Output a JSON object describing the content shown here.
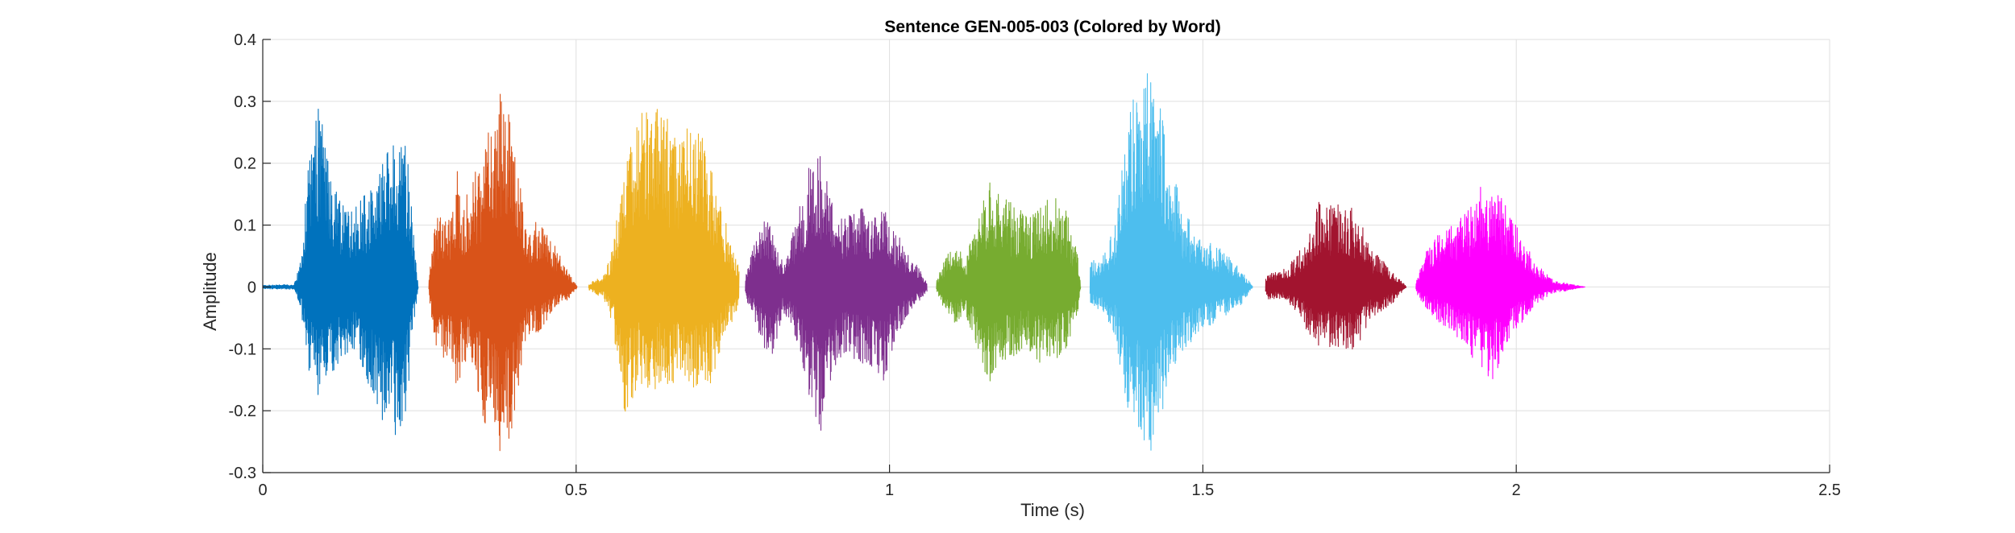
{
  "chart_data": {
    "type": "line",
    "title": "Sentence GEN-005-003 (Colored by Word)",
    "xlabel": "Time (s)",
    "ylabel": "Amplitude",
    "xlim": [
      0,
      2.5
    ],
    "ylim": [
      -0.3,
      0.4
    ],
    "xticks": [
      0,
      0.5,
      1,
      1.5,
      2,
      2.5
    ],
    "xtick_labels": [
      "0",
      "0.5",
      "1",
      "1.5",
      "2",
      "2.5"
    ],
    "yticks": [
      -0.3,
      -0.2,
      -0.1,
      0,
      0.1,
      0.2,
      0.3,
      0.4
    ],
    "ytick_labels": [
      "-0.3",
      "-0.2",
      "-0.1",
      "0",
      "0.1",
      "0.2",
      "0.3",
      "0.4"
    ],
    "grid": true,
    "background": "#ffffff",
    "grid_color": "#dfdfdf",
    "series": [
      {
        "color": "#0072BD",
        "start": 0.0,
        "end": 0.248,
        "envelope": [
          [
            0,
            0.003,
            -0.003
          ],
          [
            0.05,
            0.004,
            -0.004
          ],
          [
            0.06,
            0.04,
            -0.03
          ],
          [
            0.075,
            0.22,
            -0.15
          ],
          [
            0.09,
            0.3,
            -0.18
          ],
          [
            0.11,
            0.17,
            -0.14
          ],
          [
            0.13,
            0.13,
            -0.12
          ],
          [
            0.15,
            0.13,
            -0.1
          ],
          [
            0.17,
            0.16,
            -0.17
          ],
          [
            0.19,
            0.2,
            -0.22
          ],
          [
            0.21,
            0.24,
            -0.24
          ],
          [
            0.225,
            0.28,
            -0.25
          ],
          [
            0.24,
            0.1,
            -0.08
          ],
          [
            0.248,
            0.0,
            0.0
          ]
        ]
      },
      {
        "color": "#D95319",
        "start": 0.265,
        "end": 0.502,
        "envelope": [
          [
            0.265,
            0.01,
            -0.01
          ],
          [
            0.275,
            0.11,
            -0.1
          ],
          [
            0.3,
            0.12,
            -0.13
          ],
          [
            0.31,
            0.19,
            -0.17
          ],
          [
            0.32,
            0.13,
            -0.12
          ],
          [
            0.335,
            0.18,
            -0.14
          ],
          [
            0.35,
            0.2,
            -0.21
          ],
          [
            0.37,
            0.3,
            -0.25
          ],
          [
            0.385,
            0.32,
            -0.28
          ],
          [
            0.4,
            0.25,
            -0.22
          ],
          [
            0.42,
            0.1,
            -0.08
          ],
          [
            0.44,
            0.11,
            -0.08
          ],
          [
            0.47,
            0.06,
            -0.03
          ],
          [
            0.49,
            0.02,
            -0.02
          ],
          [
            0.502,
            0.0,
            0.0
          ]
        ]
      },
      {
        "color": "#EDB120",
        "start": 0.52,
        "end": 0.76,
        "envelope": [
          [
            0.52,
            0.005,
            -0.005
          ],
          [
            0.545,
            0.02,
            -0.02
          ],
          [
            0.56,
            0.07,
            -0.07
          ],
          [
            0.575,
            0.2,
            -0.21
          ],
          [
            0.6,
            0.28,
            -0.16
          ],
          [
            0.62,
            0.3,
            -0.17
          ],
          [
            0.64,
            0.28,
            -0.16
          ],
          [
            0.66,
            0.26,
            -0.16
          ],
          [
            0.68,
            0.27,
            -0.16
          ],
          [
            0.7,
            0.25,
            -0.17
          ],
          [
            0.72,
            0.18,
            -0.15
          ],
          [
            0.74,
            0.1,
            -0.08
          ],
          [
            0.76,
            0.03,
            -0.03
          ]
        ]
      },
      {
        "color": "#7E2F8E",
        "start": 0.77,
        "end": 1.06,
        "envelope": [
          [
            0.77,
            0.02,
            -0.02
          ],
          [
            0.78,
            0.06,
            -0.04
          ],
          [
            0.8,
            0.13,
            -0.1
          ],
          [
            0.815,
            0.08,
            -0.12
          ],
          [
            0.83,
            0.04,
            -0.04
          ],
          [
            0.85,
            0.1,
            -0.08
          ],
          [
            0.87,
            0.19,
            -0.17
          ],
          [
            0.89,
            0.22,
            -0.24
          ],
          [
            0.91,
            0.13,
            -0.13
          ],
          [
            0.93,
            0.11,
            -0.11
          ],
          [
            0.95,
            0.13,
            -0.12
          ],
          [
            0.97,
            0.12,
            -0.13
          ],
          [
            0.99,
            0.14,
            -0.16
          ],
          [
            1.01,
            0.09,
            -0.08
          ],
          [
            1.04,
            0.04,
            -0.03
          ],
          [
            1.06,
            0.01,
            -0.01
          ]
        ]
      },
      {
        "color": "#77AC30",
        "start": 1.075,
        "end": 1.305,
        "envelope": [
          [
            1.075,
            0.01,
            -0.01
          ],
          [
            1.09,
            0.05,
            -0.04
          ],
          [
            1.105,
            0.08,
            -0.06
          ],
          [
            1.12,
            0.04,
            -0.04
          ],
          [
            1.14,
            0.11,
            -0.1
          ],
          [
            1.16,
            0.17,
            -0.16
          ],
          [
            1.18,
            0.15,
            -0.13
          ],
          [
            1.2,
            0.13,
            -0.11
          ],
          [
            1.22,
            0.12,
            -0.1
          ],
          [
            1.24,
            0.14,
            -0.13
          ],
          [
            1.26,
            0.15,
            -0.12
          ],
          [
            1.28,
            0.13,
            -0.11
          ],
          [
            1.3,
            0.06,
            -0.05
          ],
          [
            1.305,
            0.0,
            0.0
          ]
        ]
      },
      {
        "color": "#4DBEEE",
        "start": 1.32,
        "end": 1.58,
        "envelope": [
          [
            1.32,
            0.04,
            -0.03
          ],
          [
            1.34,
            0.05,
            -0.04
          ],
          [
            1.36,
            0.1,
            -0.08
          ],
          [
            1.38,
            0.28,
            -0.2
          ],
          [
            1.4,
            0.35,
            -0.24
          ],
          [
            1.415,
            0.36,
            -0.29
          ],
          [
            1.43,
            0.3,
            -0.22
          ],
          [
            1.45,
            0.2,
            -0.15
          ],
          [
            1.47,
            0.12,
            -0.1
          ],
          [
            1.5,
            0.08,
            -0.07
          ],
          [
            1.53,
            0.06,
            -0.05
          ],
          [
            1.56,
            0.03,
            -0.03
          ],
          [
            1.58,
            0.0,
            0.0
          ]
        ]
      },
      {
        "color": "#A2142F",
        "start": 1.6,
        "end": 1.825,
        "envelope": [
          [
            1.6,
            0.02,
            -0.02
          ],
          [
            1.63,
            0.03,
            -0.02
          ],
          [
            1.65,
            0.05,
            -0.04
          ],
          [
            1.67,
            0.1,
            -0.08
          ],
          [
            1.69,
            0.15,
            -0.1
          ],
          [
            1.71,
            0.13,
            -0.1
          ],
          [
            1.73,
            0.14,
            -0.11
          ],
          [
            1.75,
            0.11,
            -0.09
          ],
          [
            1.77,
            0.06,
            -0.05
          ],
          [
            1.8,
            0.03,
            -0.03
          ],
          [
            1.825,
            0.0,
            0.0
          ]
        ]
      },
      {
        "color": "#FF00FF",
        "start": 1.84,
        "end": 2.11,
        "envelope": [
          [
            1.84,
            0.01,
            -0.01
          ],
          [
            1.86,
            0.07,
            -0.04
          ],
          [
            1.88,
            0.09,
            -0.06
          ],
          [
            1.9,
            0.1,
            -0.08
          ],
          [
            1.92,
            0.12,
            -0.1
          ],
          [
            1.94,
            0.17,
            -0.13
          ],
          [
            1.96,
            0.16,
            -0.16
          ],
          [
            1.98,
            0.14,
            -0.11
          ],
          [
            2.0,
            0.1,
            -0.07
          ],
          [
            2.03,
            0.04,
            -0.03
          ],
          [
            2.06,
            0.01,
            -0.01
          ],
          [
            2.11,
            0.0,
            0.0
          ]
        ]
      }
    ]
  }
}
